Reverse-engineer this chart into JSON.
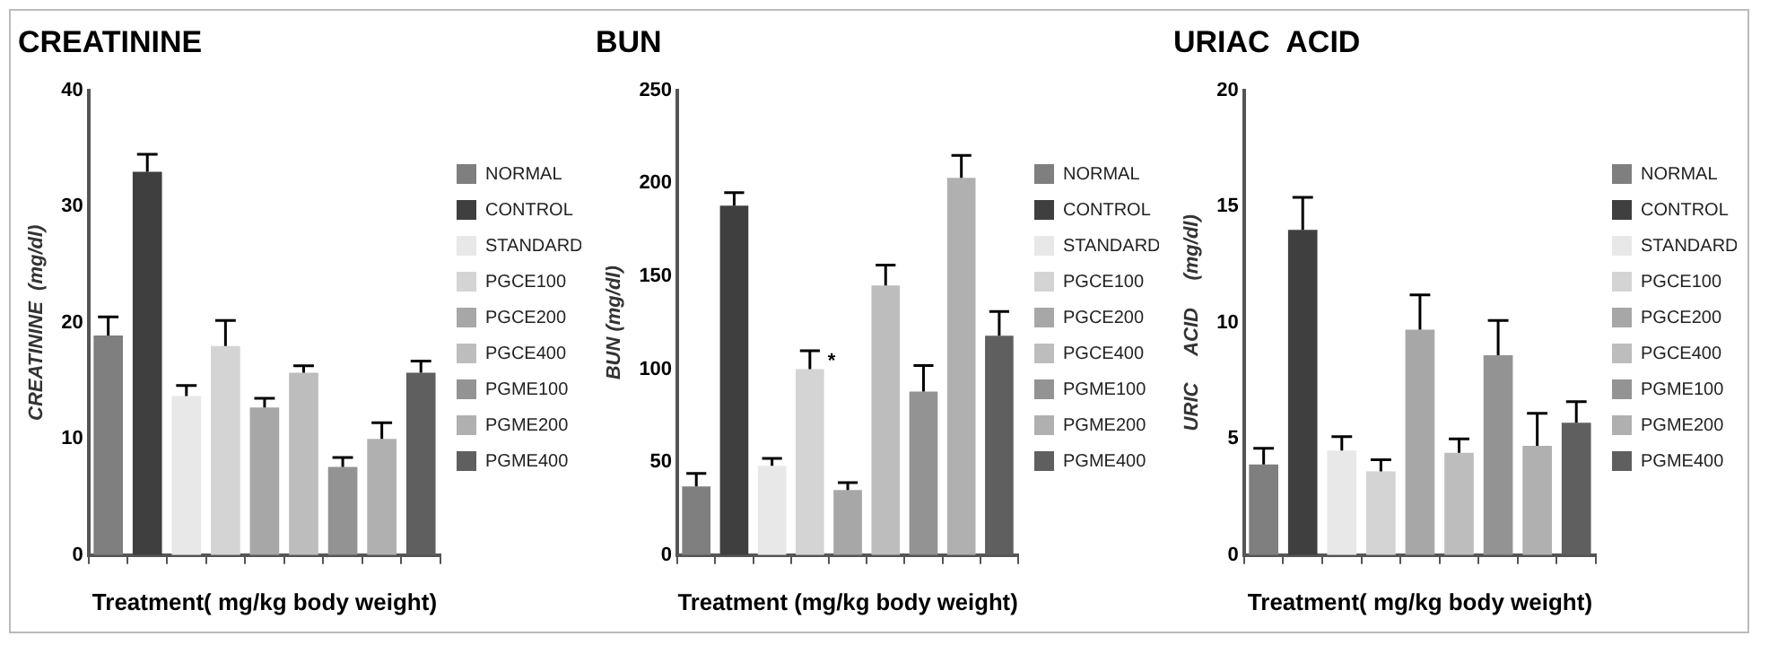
{
  "chart_data": [
    {
      "type": "bar",
      "title": "CREATININE",
      "xlabel": "Treatment( mg/kg body weight)",
      "ylabel": "CREATININE  (mg/dl)",
      "categories": [
        null,
        null,
        null,
        null,
        null,
        null,
        null,
        null,
        null
      ],
      "ylim": [
        0,
        40
      ],
      "yticks": [
        0,
        10,
        20,
        30,
        40
      ],
      "grid": false,
      "legend": "right",
      "tick_labels": "y",
      "series": [
        {
          "name": "NORMAL",
          "color": "#7f7f7f",
          "values": [
            18.9,
            null,
            null,
            null,
            null,
            null,
            null,
            null,
            null
          ],
          "errors": [
            [
              18.9,
              20.5
            ],
            null,
            null,
            null,
            null,
            null,
            null,
            null,
            null
          ]
        },
        {
          "name": "CONTROL",
          "color": "#3f3f3f",
          "values": [
            null,
            33.0,
            null,
            null,
            null,
            null,
            null,
            null,
            null
          ],
          "errors": [
            null,
            [
              33.0,
              34.5
            ],
            null,
            null,
            null,
            null,
            null,
            null,
            null
          ]
        },
        {
          "name": "STANDARD",
          "color": "#e8e8e8",
          "values": [
            null,
            null,
            13.7,
            null,
            null,
            null,
            null,
            null,
            null
          ],
          "errors": [
            null,
            null,
            [
              13.7,
              14.6
            ],
            null,
            null,
            null,
            null,
            null,
            null
          ]
        },
        {
          "name": "PGCE100",
          "color": "#d4d4d4",
          "values": [
            null,
            null,
            null,
            18.0,
            null,
            null,
            null,
            null,
            null
          ],
          "errors": [
            null,
            null,
            null,
            [
              18.0,
              20.2
            ],
            null,
            null,
            null,
            null,
            null
          ]
        },
        {
          "name": "PGCE200",
          "color": "#a7a7a7",
          "values": [
            null,
            null,
            null,
            null,
            12.7,
            null,
            null,
            null,
            null
          ],
          "errors": [
            null,
            null,
            null,
            null,
            [
              12.7,
              13.5
            ],
            null,
            null,
            null,
            null
          ]
        },
        {
          "name": "PGCE400",
          "color": "#bdbdbd",
          "values": [
            null,
            null,
            null,
            null,
            null,
            15.7,
            null,
            null,
            null
          ],
          "errors": [
            null,
            null,
            null,
            null,
            null,
            [
              15.7,
              16.3
            ],
            null,
            null,
            null
          ]
        },
        {
          "name": "PGME100",
          "color": "#939393",
          "values": [
            null,
            null,
            null,
            null,
            null,
            null,
            7.6,
            null,
            null
          ],
          "errors": [
            null,
            null,
            null,
            null,
            null,
            null,
            [
              7.6,
              8.4
            ],
            null,
            null
          ]
        },
        {
          "name": "PGME200",
          "color": "#b0b0b0",
          "values": [
            null,
            null,
            null,
            null,
            null,
            null,
            null,
            10.0,
            null
          ],
          "errors": [
            null,
            null,
            null,
            null,
            null,
            null,
            null,
            [
              10.0,
              11.4
            ],
            null
          ]
        },
        {
          "name": "PGME400",
          "color": "#5f5f5f",
          "values": [
            null,
            null,
            null,
            null,
            null,
            null,
            null,
            null,
            15.7
          ],
          "errors": [
            null,
            null,
            null,
            null,
            null,
            null,
            null,
            null,
            [
              15.7,
              16.7
            ]
          ]
        }
      ]
    },
    {
      "type": "bar",
      "title": "BUN",
      "xlabel": "Treatment (mg/kg body weight)",
      "ylabel": "BUN (mg/dl)",
      "categories": [
        null,
        null,
        null,
        null,
        null,
        null,
        null,
        null,
        null
      ],
      "ylim": [
        0,
        250
      ],
      "yticks": [
        0,
        50,
        100,
        150,
        200,
        250
      ],
      "grid": false,
      "legend": "right",
      "tick_labels": "y",
      "series": [
        {
          "name": "NORMAL",
          "color": "#7f7f7f",
          "values": [
            37,
            null,
            null,
            null,
            null,
            null,
            null,
            null,
            null
          ],
          "errors": [
            [
              37,
              44
            ],
            null,
            null,
            null,
            null,
            null,
            null,
            null,
            null
          ]
        },
        {
          "name": "CONTROL",
          "color": "#3f3f3f",
          "values": [
            null,
            188,
            null,
            null,
            null,
            null,
            null,
            null,
            null
          ],
          "errors": [
            null,
            [
              188,
              195
            ],
            null,
            null,
            null,
            null,
            null,
            null,
            null
          ]
        },
        {
          "name": "STANDARD",
          "color": "#e8e8e8",
          "values": [
            null,
            null,
            48,
            null,
            null,
            null,
            null,
            null,
            null
          ],
          "errors": [
            null,
            null,
            [
              48,
              52
            ],
            null,
            null,
            null,
            null,
            null,
            null
          ]
        },
        {
          "name": "PGCE100",
          "color": "#d4d4d4",
          "values": [
            null,
            null,
            null,
            100,
            null,
            null,
            null,
            null,
            null
          ],
          "errors": [
            null,
            null,
            null,
            [
              100,
              110
            ],
            null,
            null,
            null,
            null,
            null
          ],
          "value_labels": [
            null,
            null,
            null,
            "*",
            null,
            null,
            null,
            null,
            null
          ]
        },
        {
          "name": "PGCE200",
          "color": "#a7a7a7",
          "values": [
            null,
            null,
            null,
            null,
            35,
            null,
            null,
            null,
            null
          ],
          "errors": [
            null,
            null,
            null,
            null,
            [
              35,
              39
            ],
            null,
            null,
            null,
            null
          ]
        },
        {
          "name": "PGCE400",
          "color": "#bdbdbd",
          "values": [
            null,
            null,
            null,
            null,
            null,
            145,
            null,
            null,
            null
          ],
          "errors": [
            null,
            null,
            null,
            null,
            null,
            [
              145,
              156
            ],
            null,
            null,
            null
          ]
        },
        {
          "name": "PGME100",
          "color": "#939393",
          "values": [
            null,
            null,
            null,
            null,
            null,
            null,
            88,
            null,
            null
          ],
          "errors": [
            null,
            null,
            null,
            null,
            null,
            null,
            [
              88,
              102
            ],
            null,
            null
          ]
        },
        {
          "name": "PGME200",
          "color": "#b0b0b0",
          "values": [
            null,
            null,
            null,
            null,
            null,
            null,
            null,
            203,
            null
          ],
          "errors": [
            null,
            null,
            null,
            null,
            null,
            null,
            null,
            [
              203,
              215
            ],
            null
          ]
        },
        {
          "name": "PGME400",
          "color": "#5f5f5f",
          "values": [
            null,
            null,
            null,
            null,
            null,
            null,
            null,
            null,
            118
          ],
          "errors": [
            null,
            null,
            null,
            null,
            null,
            null,
            null,
            null,
            [
              118,
              131
            ]
          ]
        }
      ]
    },
    {
      "type": "bar",
      "title": "URIAC  ACID",
      "xlabel": "Treatment( mg/kg body weight)",
      "ylabel": "URIC     ACID     (mg/dl)",
      "categories": [
        null,
        null,
        null,
        null,
        null,
        null,
        null,
        null,
        null
      ],
      "ylim": [
        0,
        20
      ],
      "yticks": [
        0,
        5,
        10,
        15,
        20
      ],
      "grid": false,
      "legend": "right",
      "tick_labels": "y",
      "series": [
        {
          "name": "NORMAL",
          "color": "#7f7f7f",
          "values": [
            3.9,
            null,
            null,
            null,
            null,
            null,
            null,
            null,
            null
          ],
          "errors": [
            [
              3.9,
              4.6
            ],
            null,
            null,
            null,
            null,
            null,
            null,
            null,
            null
          ]
        },
        {
          "name": "CONTROL",
          "color": "#3f3f3f",
          "values": [
            null,
            14.0,
            null,
            null,
            null,
            null,
            null,
            null,
            null
          ],
          "errors": [
            null,
            [
              14.0,
              15.4
            ],
            null,
            null,
            null,
            null,
            null,
            null,
            null
          ]
        },
        {
          "name": "STANDARD",
          "color": "#e8e8e8",
          "values": [
            null,
            null,
            4.5,
            null,
            null,
            null,
            null,
            null,
            null
          ],
          "errors": [
            null,
            null,
            [
              4.5,
              5.1
            ],
            null,
            null,
            null,
            null,
            null,
            null
          ]
        },
        {
          "name": "PGCE100",
          "color": "#d4d4d4",
          "values": [
            null,
            null,
            null,
            3.6,
            null,
            null,
            null,
            null,
            null
          ],
          "errors": [
            null,
            null,
            null,
            [
              3.6,
              4.1
            ],
            null,
            null,
            null,
            null,
            null
          ]
        },
        {
          "name": "PGCE200",
          "color": "#a7a7a7",
          "values": [
            null,
            null,
            null,
            null,
            9.7,
            null,
            null,
            null,
            null
          ],
          "errors": [
            null,
            null,
            null,
            null,
            [
              9.7,
              11.2
            ],
            null,
            null,
            null,
            null
          ]
        },
        {
          "name": "PGCE400",
          "color": "#bdbdbd",
          "values": [
            null,
            null,
            null,
            null,
            null,
            4.4,
            null,
            null,
            null
          ],
          "errors": [
            null,
            null,
            null,
            null,
            null,
            [
              4.4,
              5.0
            ],
            null,
            null,
            null
          ]
        },
        {
          "name": "PGME100",
          "color": "#939393",
          "values": [
            null,
            null,
            null,
            null,
            null,
            null,
            8.6,
            null,
            null
          ],
          "errors": [
            null,
            null,
            null,
            null,
            null,
            null,
            [
              8.6,
              10.1
            ],
            null,
            null
          ]
        },
        {
          "name": "PGME200",
          "color": "#b0b0b0",
          "values": [
            null,
            null,
            null,
            null,
            null,
            null,
            null,
            4.7,
            null
          ],
          "errors": [
            null,
            null,
            null,
            null,
            null,
            null,
            null,
            [
              4.7,
              6.1
            ],
            null
          ]
        },
        {
          "name": "PGME400",
          "color": "#5f5f5f",
          "values": [
            null,
            null,
            null,
            null,
            null,
            null,
            null,
            null,
            5.7
          ],
          "errors": [
            null,
            null,
            null,
            null,
            null,
            null,
            null,
            null,
            [
              5.7,
              6.6
            ]
          ]
        }
      ]
    }
  ]
}
